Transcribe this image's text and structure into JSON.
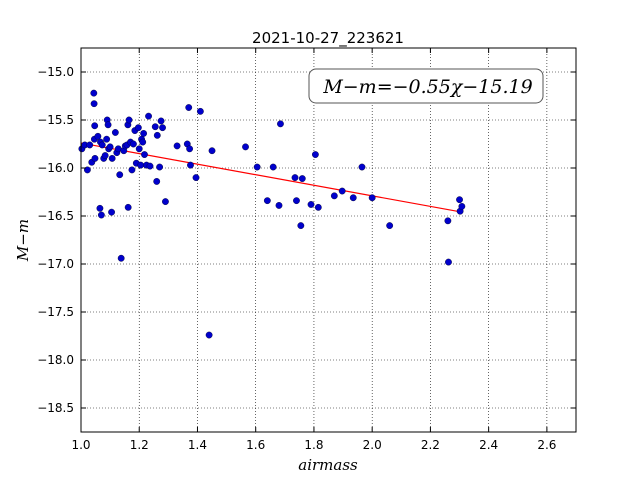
{
  "chart_data": {
    "type": "scatter",
    "title": "2021-10-27_223621",
    "xlabel": "airmass",
    "ylabel": "M−m",
    "xlim": [
      1.0,
      2.7
    ],
    "ylim": [
      -18.75,
      -14.75
    ],
    "y_inverted": true,
    "grid": true,
    "xticks": [
      "1.0",
      "1.2",
      "1.4",
      "1.6",
      "1.8",
      "2.0",
      "2.2",
      "2.4",
      "2.6"
    ],
    "yticks": [
      "−15.0",
      "−15.5",
      "−16.0",
      "−16.5",
      "−17.0",
      "−17.5",
      "−18.0",
      "−18.5"
    ],
    "annotation": "M−m=−0.55χ−15.19",
    "fit_line": {
      "slope": -0.55,
      "intercept": -15.19,
      "x_range": [
        1.0,
        2.3
      ],
      "color": "#ff0000"
    },
    "point_color": "#0000cc",
    "points": [
      [
        1.003,
        -15.8
      ],
      [
        1.013,
        -15.76
      ],
      [
        1.022,
        -16.02
      ],
      [
        1.03,
        -15.76
      ],
      [
        1.037,
        -15.94
      ],
      [
        1.044,
        -15.22
      ],
      [
        1.045,
        -15.33
      ],
      [
        1.046,
        -15.7
      ],
      [
        1.047,
        -15.56
      ],
      [
        1.048,
        -15.9
      ],
      [
        1.058,
        -15.67
      ],
      [
        1.065,
        -16.42
      ],
      [
        1.067,
        -15.73
      ],
      [
        1.07,
        -16.49
      ],
      [
        1.073,
        -15.76
      ],
      [
        1.078,
        -15.9
      ],
      [
        1.083,
        -15.87
      ],
      [
        1.088,
        -15.7
      ],
      [
        1.09,
        -15.5
      ],
      [
        1.093,
        -15.55
      ],
      [
        1.095,
        -15.8
      ],
      [
        1.1,
        -15.78
      ],
      [
        1.105,
        -16.46
      ],
      [
        1.107,
        -15.9
      ],
      [
        1.118,
        -15.63
      ],
      [
        1.123,
        -15.84
      ],
      [
        1.128,
        -15.8
      ],
      [
        1.133,
        -16.07
      ],
      [
        1.138,
        -16.94
      ],
      [
        1.147,
        -15.82
      ],
      [
        1.152,
        -15.77
      ],
      [
        1.158,
        -15.76
      ],
      [
        1.161,
        -15.55
      ],
      [
        1.162,
        -16.41
      ],
      [
        1.165,
        -15.5
      ],
      [
        1.17,
        -15.73
      ],
      [
        1.175,
        -16.02
      ],
      [
        1.18,
        -15.75
      ],
      [
        1.185,
        -15.61
      ],
      [
        1.19,
        -15.95
      ],
      [
        1.197,
        -15.58
      ],
      [
        1.2,
        -15.8
      ],
      [
        1.205,
        -15.97
      ],
      [
        1.208,
        -15.7
      ],
      [
        1.212,
        -15.73
      ],
      [
        1.215,
        -15.64
      ],
      [
        1.218,
        -15.86
      ],
      [
        1.225,
        -15.97
      ],
      [
        1.232,
        -15.46
      ],
      [
        1.237,
        -15.98
      ],
      [
        1.255,
        -15.57
      ],
      [
        1.26,
        -16.14
      ],
      [
        1.262,
        -15.66
      ],
      [
        1.27,
        -15.99
      ],
      [
        1.275,
        -15.51
      ],
      [
        1.28,
        -15.58
      ],
      [
        1.29,
        -16.35
      ],
      [
        1.33,
        -15.77
      ],
      [
        1.365,
        -15.75
      ],
      [
        1.37,
        -15.37
      ],
      [
        1.373,
        -15.8
      ],
      [
        1.376,
        -15.97
      ],
      [
        1.395,
        -16.1
      ],
      [
        1.41,
        -15.41
      ],
      [
        1.44,
        -17.74
      ],
      [
        1.45,
        -15.82
      ],
      [
        1.565,
        -15.78
      ],
      [
        1.605,
        -15.99
      ],
      [
        1.64,
        -16.34
      ],
      [
        1.66,
        -15.99
      ],
      [
        1.68,
        -16.39
      ],
      [
        1.685,
        -15.54
      ],
      [
        1.735,
        -16.1
      ],
      [
        1.74,
        -16.34
      ],
      [
        1.755,
        -16.6
      ],
      [
        1.76,
        -16.11
      ],
      [
        1.79,
        -16.38
      ],
      [
        1.805,
        -15.86
      ],
      [
        1.815,
        -16.41
      ],
      [
        1.87,
        -16.29
      ],
      [
        1.897,
        -16.24
      ],
      [
        1.935,
        -16.31
      ],
      [
        1.965,
        -15.99
      ],
      [
        2.0,
        -16.31
      ],
      [
        2.06,
        -16.6
      ],
      [
        2.26,
        -16.55
      ],
      [
        2.262,
        -16.98
      ],
      [
        2.3,
        -16.33
      ],
      [
        2.302,
        -16.45
      ],
      [
        2.308,
        -16.4
      ]
    ]
  }
}
